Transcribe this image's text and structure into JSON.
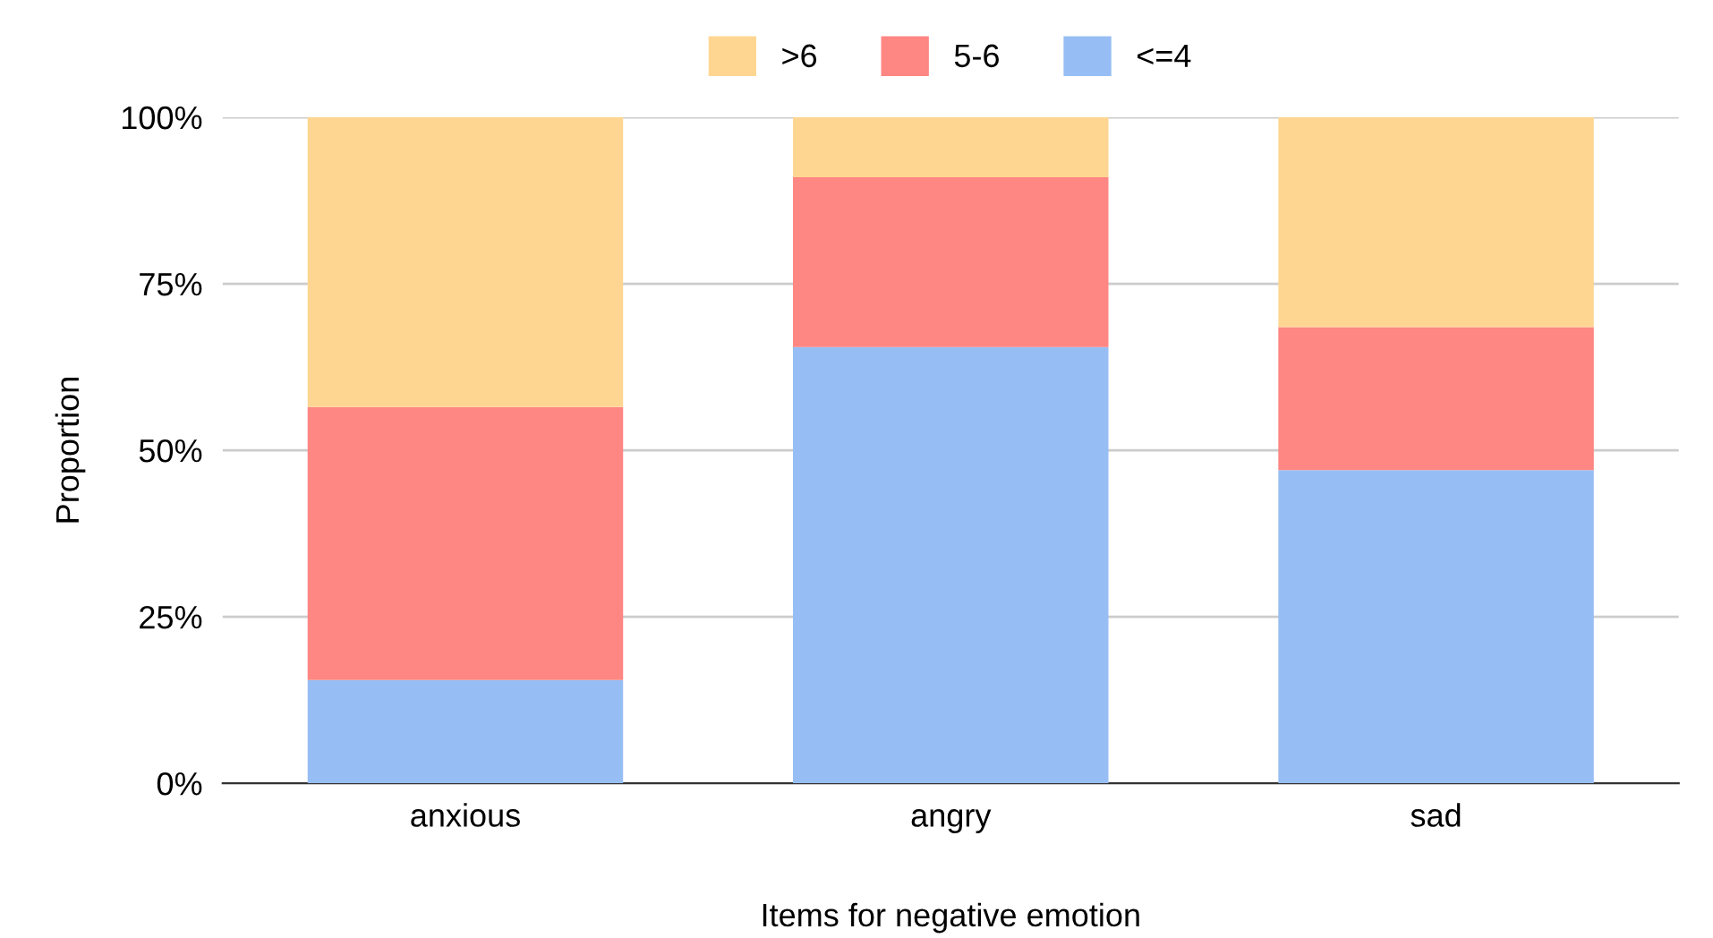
{
  "chart_data": {
    "type": "bar",
    "stacked": true,
    "xlabel": "Items for negative emotion",
    "ylabel": "Proportion",
    "categories": [
      "anxious",
      "angry",
      "sad"
    ],
    "series": [
      {
        "name": "<=4",
        "color": "#97bef4",
        "values": [
          15.5,
          65.5,
          47
        ]
      },
      {
        "name": "5-6",
        "color": "#fe8683",
        "values": [
          41,
          25.5,
          21.5
        ]
      },
      {
        "name": ">6",
        "color": "#fed692",
        "values": [
          43.5,
          9,
          31.5
        ]
      }
    ],
    "ylim": [
      0,
      100
    ],
    "yticks": [
      {
        "value": 0,
        "label": "0%"
      },
      {
        "value": 25,
        "label": "25%"
      },
      {
        "value": 50,
        "label": "50%"
      },
      {
        "value": 75,
        "label": "75%"
      },
      {
        "value": 100,
        "label": "100%"
      }
    ],
    "grid": "y",
    "legend": "top"
  }
}
